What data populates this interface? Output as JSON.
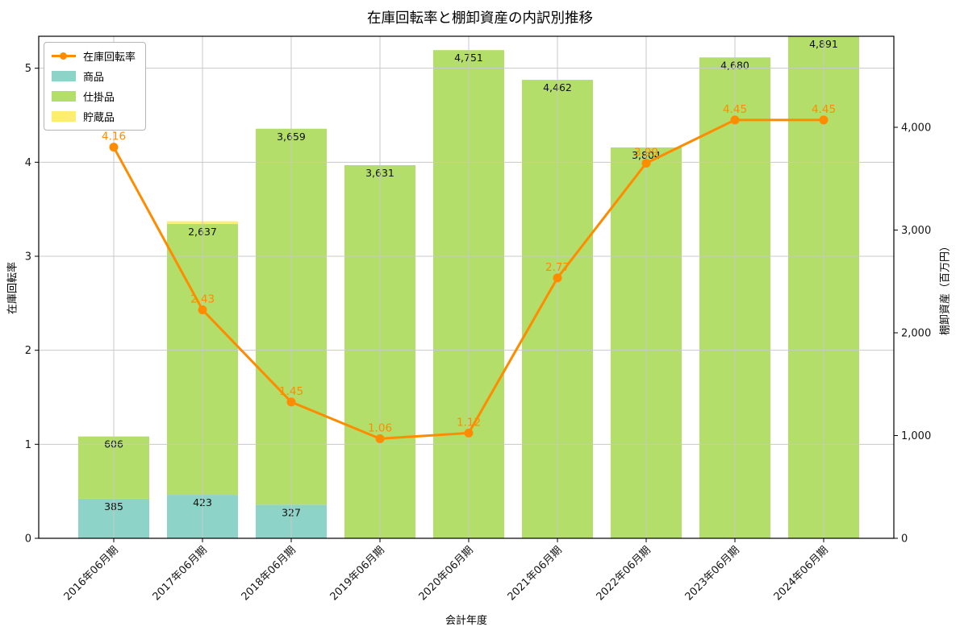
{
  "title": "在庫回転率と棚卸資産の内訳別推移",
  "legend": {
    "items": [
      {
        "label": "在庫回転率",
        "type": "line",
        "color": "#ff8c00"
      },
      {
        "label": "商品",
        "type": "patch",
        "color": "#8dd3c7"
      },
      {
        "label": "仕掛品",
        "type": "patch",
        "color": "#b3de69"
      },
      {
        "label": "貯蔵品",
        "type": "patch",
        "color": "#ffed6f"
      }
    ]
  },
  "chart_data": {
    "type": "bar+line combo (stacked bars on right axis, line on left axis)",
    "categories": [
      "2016年06月期",
      "2017年06月期",
      "2018年06月期",
      "2019年06月期",
      "2020年06月期",
      "2021年06月期",
      "2022年06月期",
      "2023年06月期",
      "2024年06月期"
    ],
    "xlabel": "会計年度",
    "bar_series": [
      {
        "name": "商品",
        "color": "#8dd3c7",
        "axis": "right",
        "values": [
          385,
          423,
          327,
          0,
          0,
          0,
          0,
          0,
          0
        ],
        "labels": [
          "385",
          "423",
          "327",
          "",
          "",
          "",
          "",
          "",
          ""
        ]
      },
      {
        "name": "仕掛品",
        "color": "#b3de69",
        "axis": "right",
        "values": [
          606,
          2637,
          3659,
          3631,
          4751,
          4462,
          3804,
          4680,
          4891
        ],
        "labels": [
          "606",
          "2,637",
          "3,659",
          "3,631",
          "4,751",
          "4,462",
          "3,804",
          "4,680",
          "4,891"
        ]
      },
      {
        "name": "貯蔵品",
        "color": "#ffed6f",
        "axis": "right",
        "values": [
          0,
          25,
          0,
          0,
          0,
          0,
          0,
          0,
          0
        ],
        "labels": [
          "",
          "",
          "",
          "",
          "",
          "",
          "",
          "",
          ""
        ]
      }
    ],
    "line_series": {
      "name": "在庫回転率",
      "color": "#ff8c00",
      "axis": "left",
      "values": [
        4.16,
        2.43,
        1.45,
        1.06,
        1.12,
        2.77,
        3.99,
        4.45,
        4.45
      ],
      "labels": [
        "4.16",
        "2.43",
        "1.45",
        "1.06",
        "1.12",
        "2.77",
        "3.99",
        "4.45",
        "4.45"
      ]
    },
    "left_axis": {
      "label": "在庫回転率",
      "ticks": [
        0,
        1,
        2,
        3,
        4,
        5
      ],
      "tick_labels": [
        "0",
        "1",
        "2",
        "3",
        "4",
        "5"
      ],
      "range": [
        0,
        5.34
      ]
    },
    "right_axis": {
      "label": "棚卸資産（百万円）",
      "ticks": [
        0,
        1000,
        2000,
        3000,
        4000
      ],
      "tick_labels": [
        "0",
        "1,000",
        "2,000",
        "3,000",
        "4,000"
      ],
      "range": [
        0,
        4886
      ]
    },
    "grid": true,
    "legend_position": "upper left"
  }
}
